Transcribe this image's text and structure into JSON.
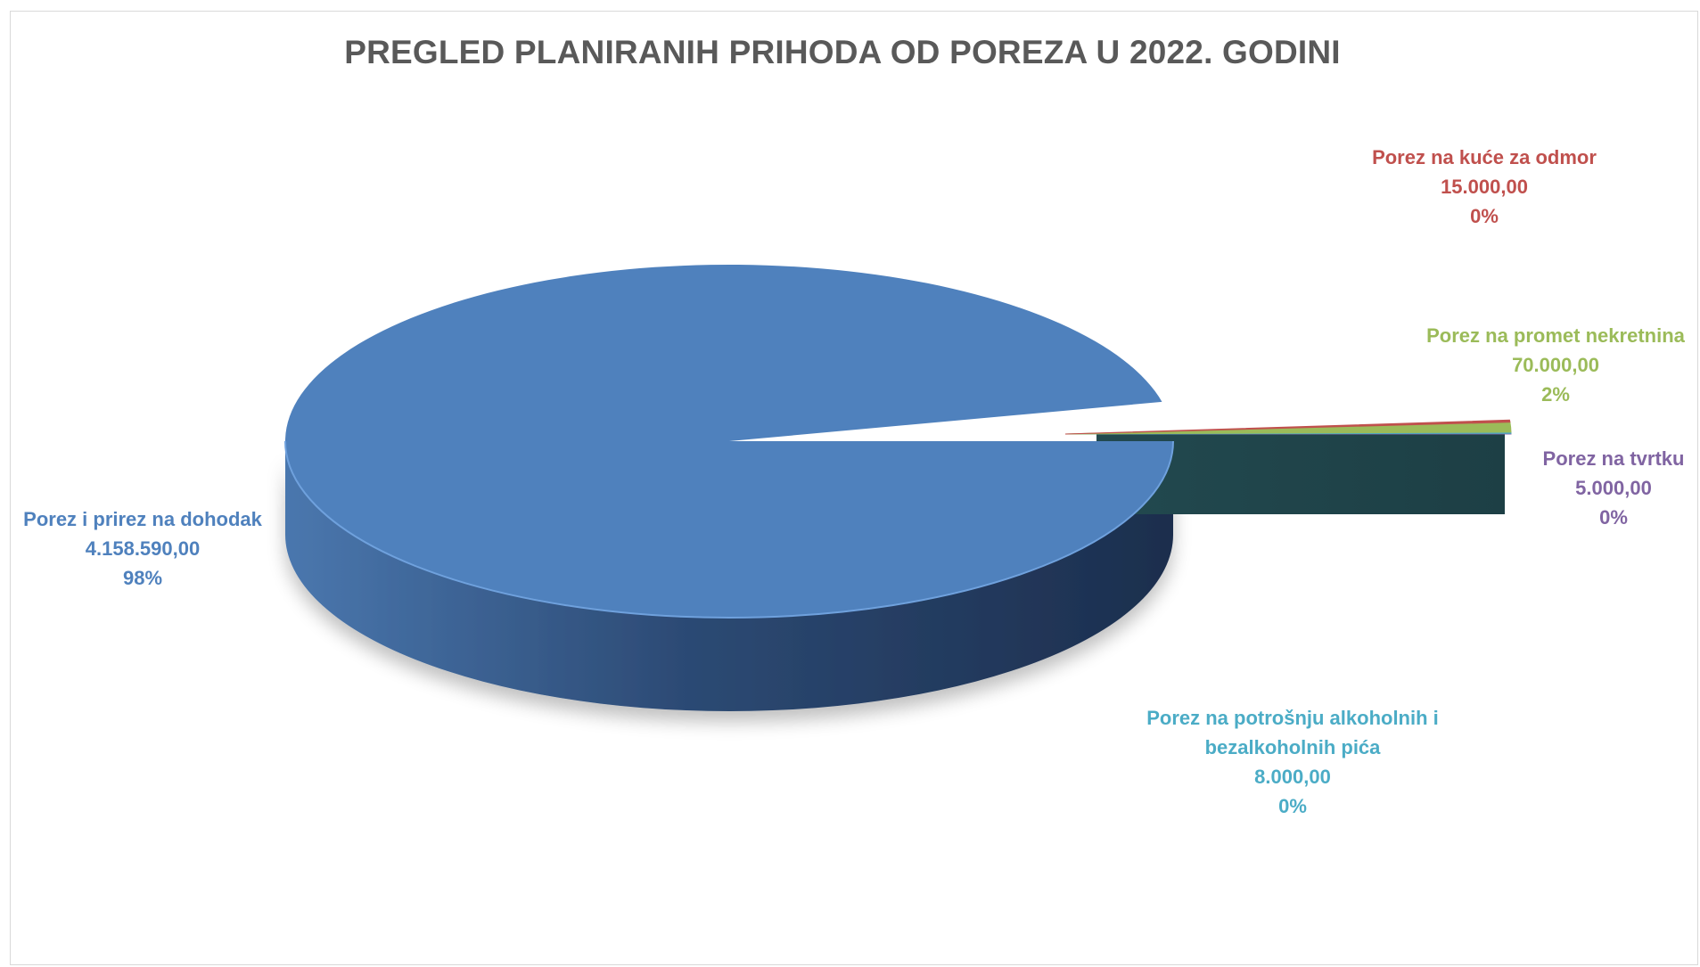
{
  "chart_data": {
    "type": "pie",
    "title": "PREGLED PLANIRANIH PRIHODA OD POREZA U 2022. GODINI",
    "slices": [
      {
        "name": "Porez i prirez na dohodak",
        "value": 4158590,
        "value_label": "4.158.590,00",
        "pct_label": "98%",
        "color": "#4f81bd"
      },
      {
        "name": "Porez na kuće za odmor",
        "value": 15000,
        "value_label": "15.000,00",
        "pct_label": "0%",
        "color": "#c0504d"
      },
      {
        "name": "Porez na promet nekretnina",
        "value": 70000,
        "value_label": "70.000,00",
        "pct_label": "2%",
        "color": "#9bbb59"
      },
      {
        "name": "Porez na tvrtku",
        "value": 5000,
        "value_label": "5.000,00",
        "pct_label": "0%",
        "color": "#8064a2"
      },
      {
        "name": "Porez na potrošnju alkoholnih i bezalkoholnih pića",
        "name_lines": [
          "Porez na potrošnju alkoholnih i",
          "bezalkoholnih pića"
        ],
        "value": 8000,
        "value_label": "8.000,00",
        "pct_label": "0%",
        "color": "#4bacc6"
      }
    ],
    "legend": "none",
    "labels": "outside"
  }
}
